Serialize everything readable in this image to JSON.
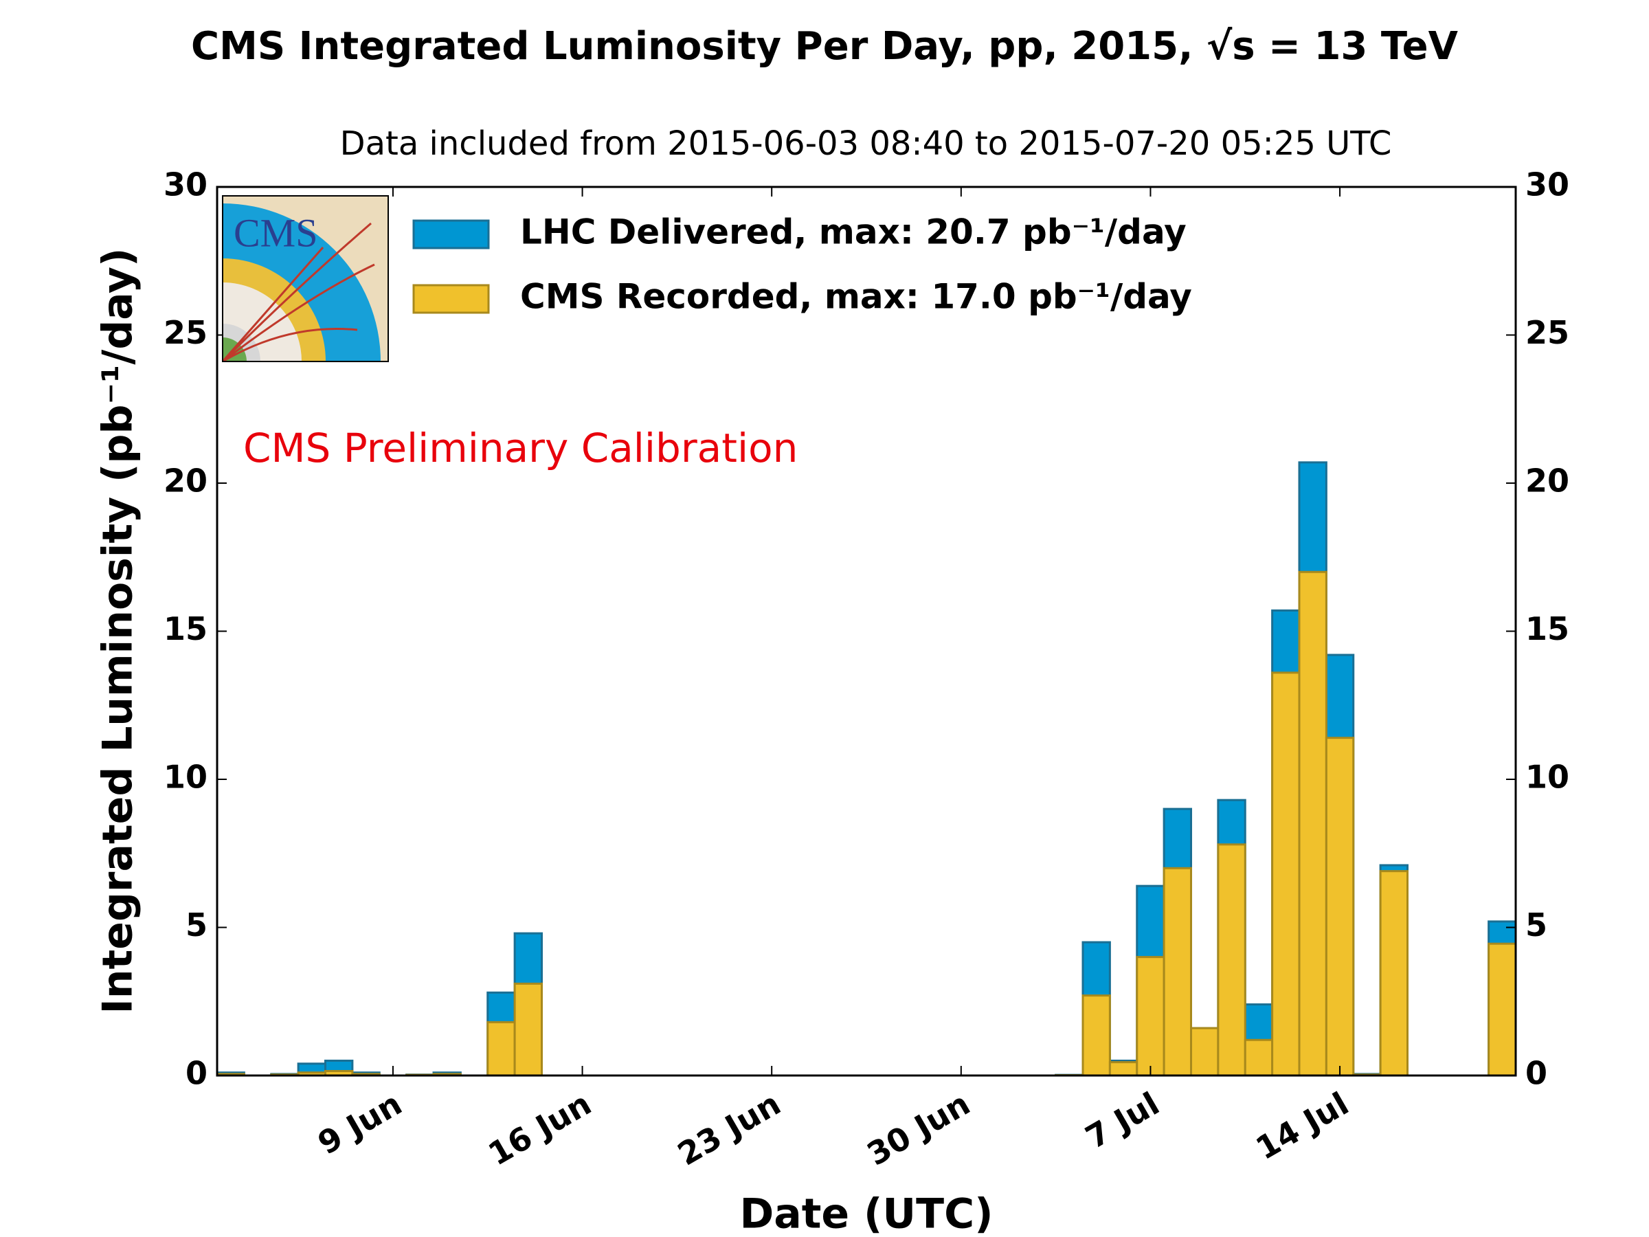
{
  "chart_data": {
    "type": "bar",
    "title": "CMS Integrated Luminosity Per Day, pp, 2015, √s = 13 TeV",
    "subtitle": "Data included from 2015-06-03 08:40 to 2015-07-20 05:25 UTC",
    "x_label": "Date (UTC)",
    "y_label": "Integrated Luminosity (pb⁻¹/day)",
    "annotation": "CMS Preliminary Calibration",
    "overlap": true,
    "categories": [
      null,
      null,
      null,
      null,
      null,
      null,
      "9 Jun",
      null,
      null,
      null,
      null,
      null,
      null,
      "16 Jun",
      null,
      null,
      null,
      null,
      null,
      null,
      "23 Jun",
      null,
      null,
      null,
      null,
      null,
      null,
      "30 Jun",
      null,
      null,
      null,
      null,
      null,
      null,
      "7 Jul",
      null,
      null,
      null,
      null,
      null,
      null,
      "14 Jul",
      null,
      null,
      null,
      null,
      null,
      null
    ],
    "series": [
      {
        "name": "LHC Delivered, max: 20.7 pb⁻¹/day",
        "color": "#0096d2",
        "edge": "#1a6f94",
        "values": [
          0.1,
          0,
          0.05,
          0.4,
          0.5,
          0.1,
          0,
          0.03,
          0.1,
          0,
          2.8,
          4.8,
          0,
          0,
          0,
          0,
          0,
          0,
          0,
          0,
          0,
          0,
          0,
          0,
          0,
          0,
          0,
          0,
          0,
          0,
          0,
          0.02,
          4.5,
          0.5,
          6.4,
          9.0,
          1.6,
          9.3,
          2.4,
          15.7,
          20.7,
          14.2,
          0.05,
          7.1,
          0,
          0,
          0,
          5.2
        ]
      },
      {
        "name": "CMS Recorded, max: 17.0 pb⁻¹/day",
        "color": "#f0c12c",
        "edge": "#a8891c",
        "values": [
          0.05,
          0,
          0.03,
          0.1,
          0.15,
          0.05,
          0,
          0.02,
          0.05,
          0,
          1.8,
          3.1,
          0,
          0,
          0,
          0,
          0,
          0,
          0,
          0,
          0,
          0,
          0,
          0,
          0,
          0,
          0,
          0,
          0,
          0,
          0,
          0.01,
          2.7,
          0.45,
          4.0,
          7.0,
          1.6,
          7.8,
          1.2,
          13.6,
          17.0,
          11.4,
          0.03,
          6.9,
          0,
          0,
          0,
          4.45
        ]
      }
    ],
    "ylim": [
      0,
      30
    ],
    "yticks": [
      0,
      5,
      10,
      15,
      20,
      25,
      30
    ],
    "y2lim": [
      0,
      30
    ],
    "y2ticks": [
      0,
      5,
      10,
      15,
      20,
      25,
      30
    ],
    "legend": "upper left"
  }
}
